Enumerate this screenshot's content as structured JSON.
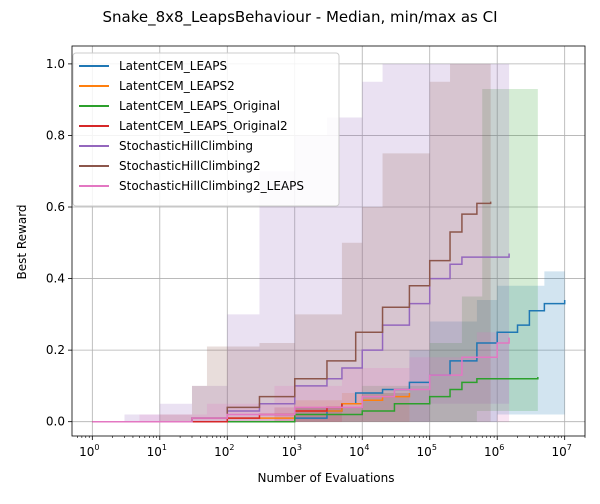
{
  "chart_data": {
    "type": "line",
    "title": "Snake_8x8_LeapsBehaviour - Median, min/max as CI",
    "xlabel": "Number of Evaluations",
    "ylabel": "Best Reward",
    "xscale": "log",
    "xlim": [
      0.5,
      20000000
    ],
    "ylim": [
      -0.04,
      1.05
    ],
    "xticks": [
      {
        "value": 1,
        "base": "10",
        "exp": "0"
      },
      {
        "value": 10,
        "base": "10",
        "exp": "1"
      },
      {
        "value": 100,
        "base": "10",
        "exp": "2"
      },
      {
        "value": 1000,
        "base": "10",
        "exp": "3"
      },
      {
        "value": 10000,
        "base": "10",
        "exp": "4"
      },
      {
        "value": 100000,
        "base": "10",
        "exp": "5"
      },
      {
        "value": 1000000,
        "base": "10",
        "exp": "6"
      },
      {
        "value": 10000000,
        "base": "10",
        "exp": "7"
      }
    ],
    "yticks": [
      {
        "value": 0.0,
        "label": "0.0"
      },
      {
        "value": 0.2,
        "label": "0.2"
      },
      {
        "value": 0.4,
        "label": "0.4"
      },
      {
        "value": 0.6,
        "label": "0.6"
      },
      {
        "value": 0.8,
        "label": "0.8"
      },
      {
        "value": 1.0,
        "label": "1.0"
      }
    ],
    "grid": true,
    "legend_position": "top-left",
    "series": [
      {
        "name": "LatentCEM_LEAPS",
        "color": "#1f77b4",
        "median": [
          [
            1,
            0
          ],
          [
            1000,
            0.01
          ],
          [
            3000,
            0.03
          ],
          [
            5000,
            0.05
          ],
          [
            8000,
            0.08
          ],
          [
            20000,
            0.09
          ],
          [
            50000,
            0.11
          ],
          [
            100000,
            0.13
          ],
          [
            200000,
            0.17
          ],
          [
            500000,
            0.22
          ],
          [
            1000000,
            0.25
          ],
          [
            2000000,
            0.27
          ],
          [
            3000000,
            0.31
          ],
          [
            5000000,
            0.33
          ],
          [
            10000000,
            0.34
          ]
        ],
        "upper": [
          [
            1,
            0
          ],
          [
            1000,
            0.04
          ],
          [
            10000,
            0.08
          ],
          [
            50000,
            0.2
          ],
          [
            100000,
            0.28
          ],
          [
            500000,
            0.34
          ],
          [
            1000000,
            0.38
          ],
          [
            5000000,
            0.42
          ],
          [
            10000000,
            0.42
          ]
        ],
        "lower": [
          [
            1,
            0
          ],
          [
            100000,
            0
          ],
          [
            1000000,
            0.02
          ],
          [
            10000000,
            0.02
          ]
        ]
      },
      {
        "name": "LatentCEM_LEAPS2",
        "color": "#ff7f0e",
        "median": [
          [
            1,
            0
          ],
          [
            100,
            0.01
          ],
          [
            1000,
            0.03
          ],
          [
            5000,
            0.05
          ],
          [
            10000,
            0.06
          ],
          [
            20000,
            0.07
          ],
          [
            50000,
            0.08
          ]
        ],
        "upper": [
          [
            1,
            0
          ],
          [
            1000,
            0.06
          ],
          [
            5000,
            0.08
          ],
          [
            50000,
            0.1
          ]
        ],
        "lower": [
          [
            1,
            0
          ],
          [
            50000,
            0
          ]
        ]
      },
      {
        "name": "LatentCEM_LEAPS_Original",
        "color": "#2ca02c",
        "median": [
          [
            1,
            0
          ],
          [
            1000,
            0.02
          ],
          [
            10000,
            0.03
          ],
          [
            30000,
            0.05
          ],
          [
            100000,
            0.07
          ],
          [
            200000,
            0.09
          ],
          [
            300000,
            0.11
          ],
          [
            500000,
            0.12
          ],
          [
            1000000,
            0.12
          ],
          [
            2000000,
            0.12
          ],
          [
            4000000,
            0.125
          ]
        ],
        "upper": [
          [
            1,
            0
          ],
          [
            1000,
            0.04
          ],
          [
            10000,
            0.1
          ],
          [
            100000,
            0.22
          ],
          [
            300000,
            0.35
          ],
          [
            600000,
            0.93
          ],
          [
            4000000,
            0.93
          ]
        ],
        "lower": [
          [
            1,
            0
          ],
          [
            300000,
            0
          ],
          [
            500000,
            0.03
          ],
          [
            4000000,
            0.05
          ]
        ]
      },
      {
        "name": "LatentCEM_LEAPS_Original2",
        "color": "#d62728",
        "median": [
          [
            1,
            0
          ],
          [
            100,
            0.01
          ],
          [
            300,
            0.02
          ],
          [
            1000,
            0.03
          ],
          [
            3000,
            0.04
          ],
          [
            5000,
            0.05
          ]
        ],
        "upper": [
          [
            1,
            0
          ],
          [
            500,
            0.04
          ],
          [
            5000,
            0.07
          ]
        ],
        "lower": [
          [
            1,
            0
          ],
          [
            5000,
            0
          ]
        ]
      },
      {
        "name": "StochasticHillClimbing",
        "color": "#9467bd",
        "median": [
          [
            1,
            0
          ],
          [
            30,
            0.01
          ],
          [
            100,
            0.03
          ],
          [
            300,
            0.05
          ],
          [
            1000,
            0.1
          ],
          [
            3000,
            0.12
          ],
          [
            5000,
            0.15
          ],
          [
            10000,
            0.2
          ],
          [
            20000,
            0.27
          ],
          [
            50000,
            0.33
          ],
          [
            100000,
            0.4
          ],
          [
            200000,
            0.44
          ],
          [
            300000,
            0.46
          ],
          [
            1500000,
            0.47
          ]
        ],
        "upper": [
          [
            1,
            0
          ],
          [
            3,
            0.02
          ],
          [
            10,
            0.05
          ],
          [
            30,
            0.1
          ],
          [
            100,
            0.3
          ],
          [
            300,
            0.7
          ],
          [
            1000,
            0.8
          ],
          [
            3000,
            0.85
          ],
          [
            10000,
            0.95
          ],
          [
            20000,
            1.0
          ],
          [
            1500000,
            1.0
          ]
        ],
        "lower": [
          [
            1,
            0
          ],
          [
            10000,
            0
          ],
          [
            100000,
            0.05
          ],
          [
            1500000,
            0.1
          ]
        ]
      },
      {
        "name": "StochasticHillClimbing2",
        "color": "#8c564b",
        "median": [
          [
            1,
            0
          ],
          [
            30,
            0.01
          ],
          [
            100,
            0.04
          ],
          [
            300,
            0.07
          ],
          [
            1000,
            0.12
          ],
          [
            3000,
            0.17
          ],
          [
            8000,
            0.25
          ],
          [
            20000,
            0.32
          ],
          [
            50000,
            0.38
          ],
          [
            100000,
            0.45
          ],
          [
            200000,
            0.53
          ],
          [
            300000,
            0.58
          ],
          [
            500000,
            0.61
          ],
          [
            800000,
            0.615
          ]
        ],
        "upper": [
          [
            1,
            0
          ],
          [
            10,
            0.02
          ],
          [
            30,
            0.1
          ],
          [
            50,
            0.21
          ],
          [
            300,
            0.22
          ],
          [
            1000,
            0.3
          ],
          [
            5000,
            0.5
          ],
          [
            10000,
            0.6
          ],
          [
            20000,
            0.75
          ],
          [
            100000,
            0.95
          ],
          [
            200000,
            1.0
          ],
          [
            800000,
            1.0
          ]
        ],
        "lower": [
          [
            1,
            0
          ],
          [
            100000,
            0
          ],
          [
            800000,
            0.05
          ]
        ]
      },
      {
        "name": "StochasticHillClimbing2_LEAPS",
        "color": "#e377c2",
        "median": [
          [
            1,
            0
          ],
          [
            30,
            0.01
          ],
          [
            100,
            0.02
          ],
          [
            1000,
            0.04
          ],
          [
            10000,
            0.07
          ],
          [
            30000,
            0.09
          ],
          [
            100000,
            0.13
          ],
          [
            300000,
            0.18
          ],
          [
            1000000,
            0.22
          ],
          [
            1500000,
            0.235
          ]
        ],
        "upper": [
          [
            1,
            0
          ],
          [
            5,
            0.02
          ],
          [
            50,
            0.05
          ],
          [
            500,
            0.1
          ],
          [
            5000,
            0.15
          ],
          [
            50000,
            0.18
          ],
          [
            500000,
            0.25
          ],
          [
            1500000,
            0.25
          ]
        ],
        "lower": [
          [
            1,
            0
          ],
          [
            1500000,
            0
          ]
        ]
      }
    ]
  }
}
